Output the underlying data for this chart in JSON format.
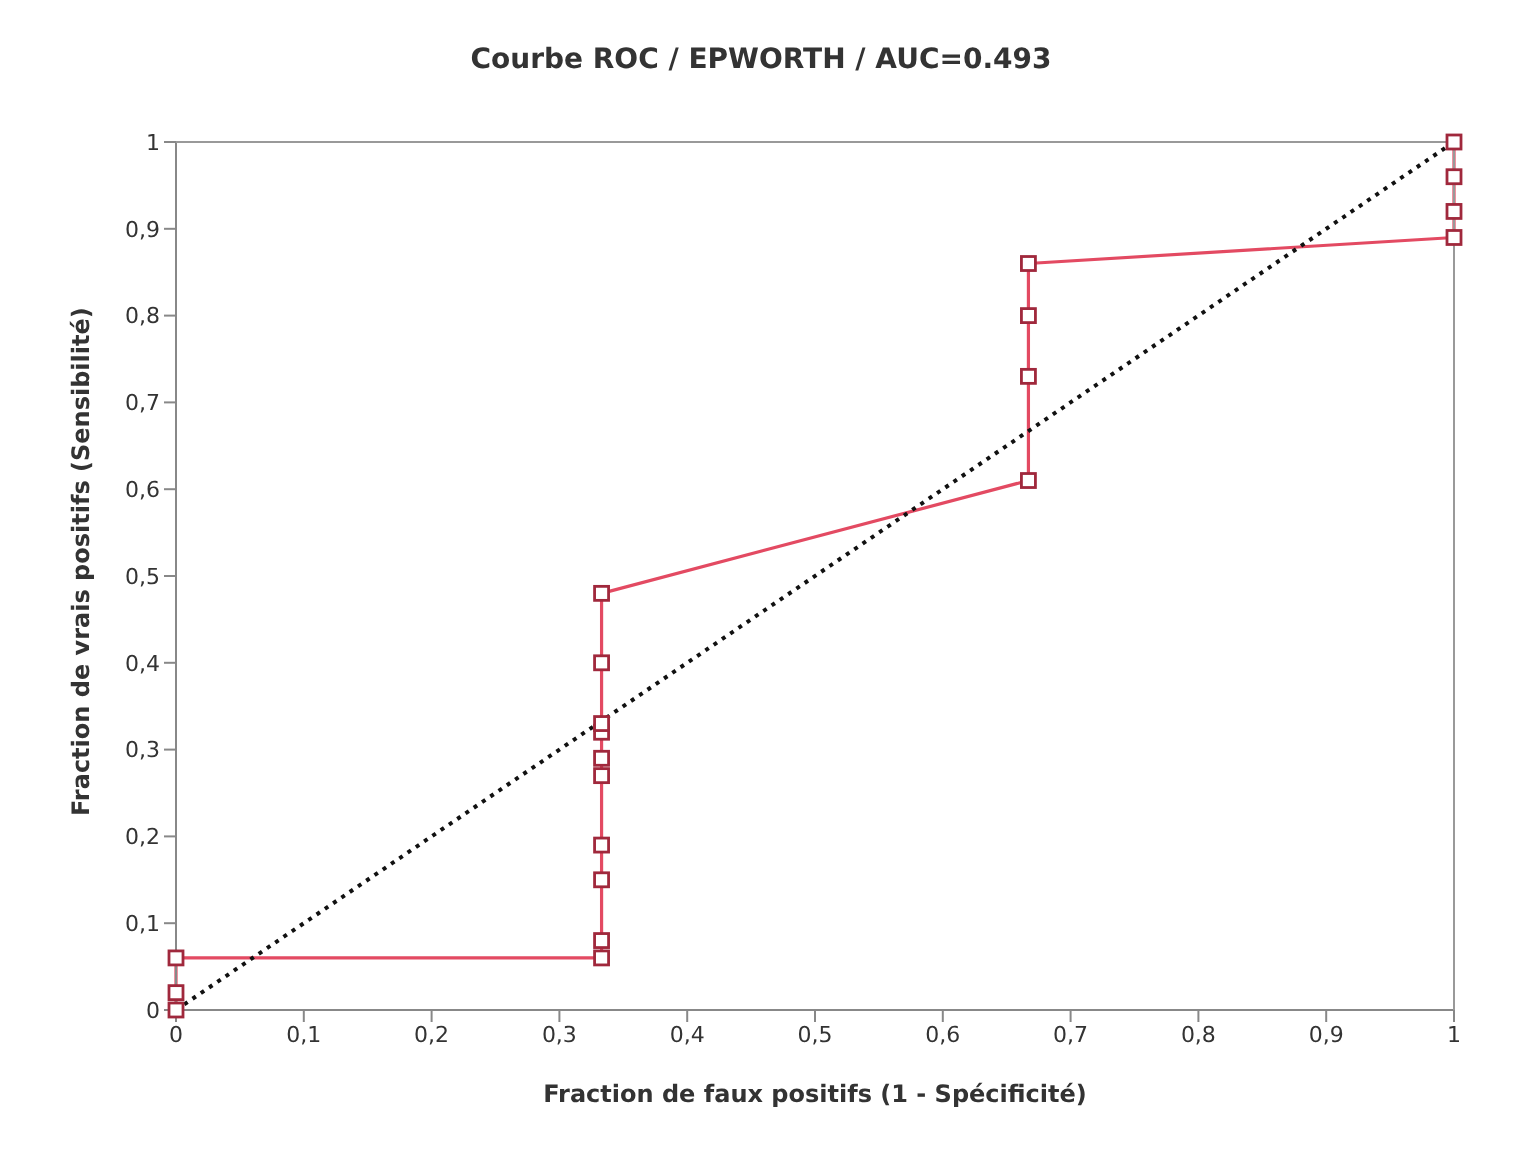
{
  "chart_data": {
    "type": "line",
    "title": "Courbe ROC / EPWORTH / AUC=0.493",
    "xlabel": "Fraction de faux positifs (1 - Spécificité)",
    "ylabel": "Fraction de vrais positifs (Sensibilité)",
    "xlim": [
      0,
      1
    ],
    "ylim": [
      0,
      1
    ],
    "xticks": [
      0,
      {
        "value": 0.1,
        "label": "0,1"
      },
      {
        "value": 0.2,
        "label": "0,2"
      },
      {
        "value": 0.3,
        "label": "0,3"
      },
      {
        "value": 0.4,
        "label": "0,4"
      },
      {
        "value": 0.5,
        "label": "0,5"
      },
      {
        "value": 0.6,
        "label": "0,6"
      },
      {
        "value": 0.7,
        "label": "0,7"
      },
      {
        "value": 0.8,
        "label": "0,8"
      },
      {
        "value": 0.9,
        "label": "0,9"
      },
      1
    ],
    "yticks": [
      0,
      {
        "value": 0.1,
        "label": "0,1"
      },
      {
        "value": 0.2,
        "label": "0,2"
      },
      {
        "value": 0.3,
        "label": "0,3"
      },
      {
        "value": 0.4,
        "label": "0,4"
      },
      {
        "value": 0.5,
        "label": "0,5"
      },
      {
        "value": 0.6,
        "label": "0,6"
      },
      {
        "value": 0.7,
        "label": "0,7"
      },
      {
        "value": 0.8,
        "label": "0,8"
      },
      {
        "value": 0.9,
        "label": "0,9"
      },
      1
    ],
    "grid": false,
    "series": [
      {
        "color": "#e34a62",
        "marker": "square",
        "line_style": "solid",
        "x": [
          0,
          0,
          0,
          0.333,
          0.333,
          0.333,
          0.333,
          0.333,
          0.333,
          0.333,
          0.333,
          0.333,
          0.333,
          0.667,
          0.667,
          0.667,
          0.667,
          1,
          1,
          1,
          1
        ],
        "values": [
          0,
          0.02,
          0.06,
          0.06,
          0.08,
          0.15,
          0.19,
          0.27,
          0.29,
          0.32,
          0.33,
          0.4,
          0.48,
          0.61,
          0.73,
          0.8,
          0.86,
          0.89,
          0.92,
          0.96,
          1
        ]
      },
      {
        "color": "#111111",
        "marker": "none",
        "line_style": "dotted",
        "x": [
          0,
          1
        ],
        "values": [
          0,
          1
        ]
      }
    ]
  }
}
